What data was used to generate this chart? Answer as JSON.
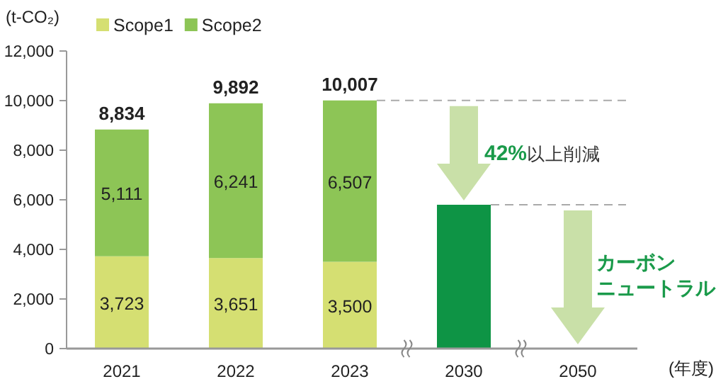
{
  "chart_data": {
    "type": "bar",
    "stacked": true,
    "categories": [
      "2021",
      "2022",
      "2023",
      "2030",
      "2050"
    ],
    "series": [
      {
        "name": "Scope1",
        "color": "#d5df72",
        "values": [
          3723,
          3651,
          3500,
          null,
          null
        ],
        "value_labels": [
          "3,723",
          "3,651",
          "3,500",
          null,
          null
        ]
      },
      {
        "name": "Scope2",
        "color": "#8dc556",
        "values": [
          5111,
          6241,
          6507,
          null,
          null
        ],
        "value_labels": [
          "5,111",
          "6,241",
          "6,507",
          null,
          null
        ]
      },
      {
        "color": "#0e9445",
        "values": [
          null,
          null,
          null,
          5800,
          null
        ]
      }
    ],
    "totals": [
      "8,834",
      "9,892",
      "10,007",
      null,
      null
    ],
    "ylim": [
      0,
      12000
    ],
    "yticks": [
      0,
      {
        "value": 2000,
        "label": "2,000"
      },
      {
        "value": 4000,
        "label": "4,000"
      },
      {
        "value": 6000,
        "label": "6,000"
      },
      {
        "value": 8000,
        "label": "8,000"
      },
      {
        "value": 10000,
        "label": "10,000"
      },
      {
        "value": 12000,
        "label": "12,000"
      }
    ],
    "ylabel": "(t-CO₂)",
    "xlabel": "(年度)",
    "legend": "top left",
    "ref_lines": [
      {
        "axis": "y",
        "value": 10007,
        "color": "#aaaaaa",
        "line_style": "dashed"
      },
      {
        "axis": "y",
        "value": 5800,
        "color": "#aaaaaa",
        "line_style": "dashed"
      }
    ],
    "annotations": [
      "**42%**以上削減",
      "カーボンニュートラル"
    ]
  }
}
